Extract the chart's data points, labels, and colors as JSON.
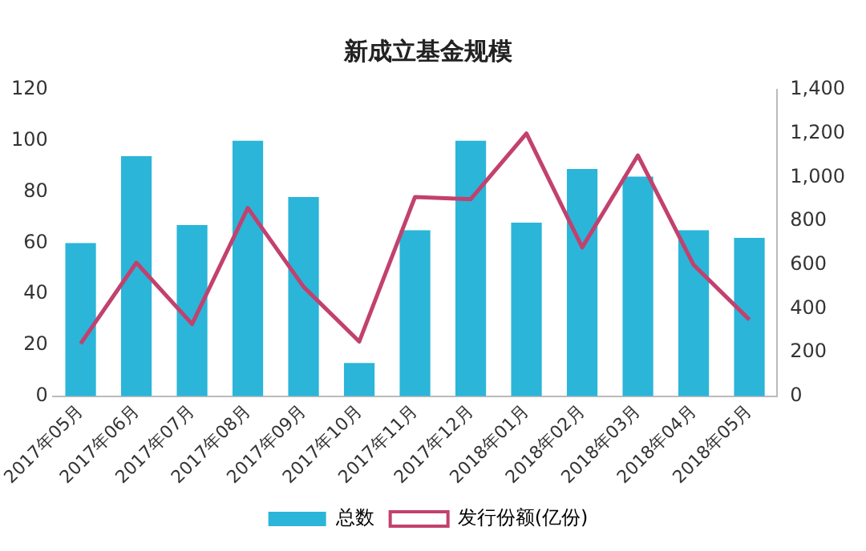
{
  "chart_data": {
    "type": "bar",
    "title": "新成立基金规模",
    "categories": [
      "2017年05月",
      "2017年06月",
      "2017年07月",
      "2017年08月",
      "2017年09月",
      "2017年10月",
      "2017年11月",
      "2017年12月",
      "2018年01月",
      "2018年02月",
      "2018年03月",
      "2018年04月",
      "2018年05月"
    ],
    "series": [
      {
        "name": "总数",
        "color": "#2bb5d8",
        "values": [
          60,
          94,
          67,
          100,
          78,
          13,
          65,
          100,
          68,
          89,
          86,
          65,
          62
        ]
      },
      {
        "name": "发行份额(亿份)",
        "type": "line",
        "axis": "y2",
        "color": "#c2416e",
        "values": [
          240,
          610,
          330,
          860,
          500,
          250,
          910,
          900,
          1200,
          680,
          1100,
          600,
          350
        ]
      }
    ],
    "ylim": [
      0,
      120
    ],
    "yticks": [
      0,
      20,
      40,
      60,
      80,
      100,
      120
    ],
    "y2lim": [
      0,
      1400
    ],
    "y2ticks": [
      0,
      {
        "value": 200,
        "label": "200"
      },
      {
        "value": 400,
        "label": "400"
      },
      {
        "value": 600,
        "label": "600"
      },
      {
        "value": 800,
        "label": "800"
      },
      {
        "value": 1000,
        "label": "1,000"
      },
      {
        "value": 1200,
        "label": "1,200"
      },
      {
        "value": 1400,
        "label": "1,400"
      }
    ],
    "grid": false,
    "legend": "bottom",
    "marker": "none"
  }
}
